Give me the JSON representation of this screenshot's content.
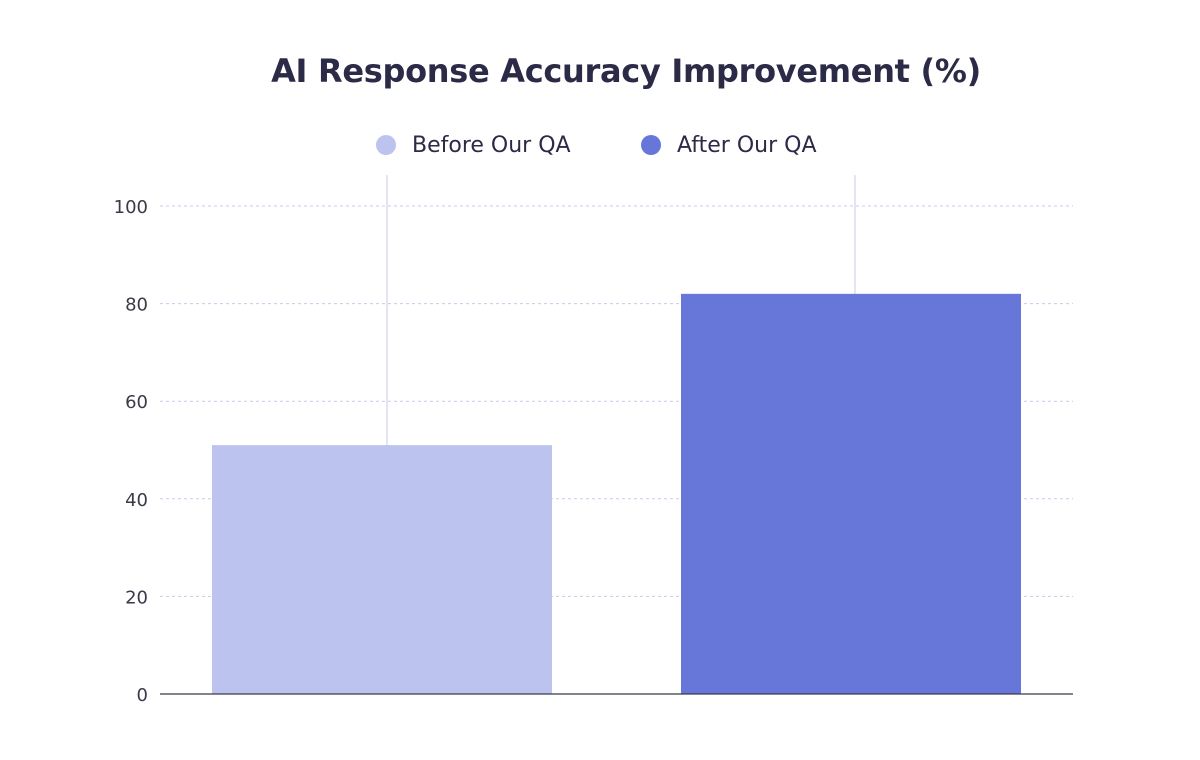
{
  "chart_data": {
    "type": "bar",
    "title": "AI Response Accuracy Improvement (%)",
    "xlabel": "",
    "ylabel": "",
    "ylim": [
      0,
      100
    ],
    "yticks": [
      0,
      20,
      40,
      60,
      80,
      100
    ],
    "grid": true,
    "legend_position": "top-center",
    "series": [
      {
        "name": "Before Our QA",
        "value": 51,
        "color": "#bcc3ef"
      },
      {
        "name": "After Our QA",
        "value": 82,
        "color": "#6677d9"
      }
    ]
  },
  "colors": {
    "title": "#2b2a47",
    "gridline": "#c9c9e8",
    "axis": "#3a3a4a",
    "whisker": "#c9c9e8"
  }
}
